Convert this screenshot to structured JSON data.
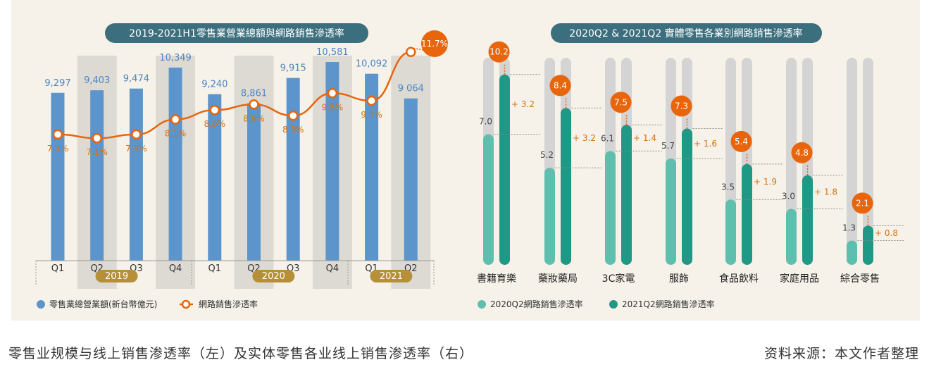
{
  "colors": {
    "panel_bg": "#f6f2e9",
    "title_pill": "#3c6f7d",
    "blue_bar": "#5b95cb",
    "blue_label": "#4a86c2",
    "orange": "#e8650c",
    "orange_label": "#d8700f",
    "bg_band": "#dddad3",
    "teal_light": "#5fbfae",
    "teal_dark": "#1f9885",
    "grey_track": "#d3d4d3",
    "year_pill": "#b58f39"
  },
  "chart_data": [
    {
      "type": "bar",
      "title": "2019-2021H1零售業營業總額與網路銷售滲透率",
      "categories": [
        "Q1",
        "Q2",
        "Q3",
        "Q4",
        "Q1",
        "Q2",
        "Q3",
        "Q4",
        "Q1",
        "Q2"
      ],
      "year_groups": [
        {
          "label": "2019",
          "quarters": 4
        },
        {
          "label": "2020",
          "quarters": 4
        },
        {
          "label": "2021",
          "quarters": 2
        }
      ],
      "series": [
        {
          "name": "零售業總營業額(新台幣億元)",
          "type": "bar",
          "values": [
            9297,
            9403,
            9474,
            10349,
            9240,
            8861,
            9915,
            10581,
            10092,
            9064
          ],
          "labels": [
            "9,297",
            "9,403",
            "9,474",
            "10,349",
            "9,240",
            "8,861",
            "9,915",
            "10,581",
            "10,092",
            "9 064"
          ]
        },
        {
          "name": "網路銷售滲透率",
          "type": "line",
          "values": [
            7.3,
            7.1,
            7.3,
            8.1,
            8.6,
            8.9,
            8.3,
            9.5,
            9.1,
            11.7
          ],
          "labels": [
            "7.3%",
            "7.1%",
            "7.3%",
            "8.1%",
            "8.6%",
            "8.9%",
            "8.3%",
            "9.5%",
            "9.1%",
            "11.7%"
          ]
        }
      ],
      "legend": "bottom-left"
    },
    {
      "type": "bar",
      "title": "2020Q2 & 2021Q2 實體零售各業別網路銷售滲透率",
      "categories": [
        "書籍育樂",
        "藥妝藥局",
        "3C家電",
        "服飾",
        "食品飲料",
        "家庭用品",
        "綜合零售"
      ],
      "series": [
        {
          "name": "2020Q2網路銷售滲透率",
          "values": [
            7.0,
            5.2,
            6.1,
            5.7,
            3.5,
            3.0,
            1.3
          ],
          "labels": [
            "7.0",
            "5.2",
            "6.1",
            "5.7",
            "3.5",
            "3.0",
            "1.3"
          ]
        },
        {
          "name": "2021Q2網路銷售滲透率",
          "values": [
            10.2,
            8.4,
            7.5,
            7.3,
            5.4,
            4.8,
            2.1
          ],
          "labels": [
            "10.2",
            "8.4",
            "7.5",
            "7.3",
            "5.4",
            "4.8",
            "2.1"
          ]
        }
      ],
      "increase_labels": [
        "+ 3.2",
        "+ 3.2",
        "+ 1.4",
        "+ 1.6",
        "+ 1.9",
        "+ 1.8",
        "+ 0.8"
      ],
      "legend": "bottom-left"
    }
  ],
  "caption": {
    "left": "零售业规模与线上销售渗透率（左）及实体零售各业线上销售渗透率（右）",
    "right": "资料来源：本文作者整理"
  }
}
